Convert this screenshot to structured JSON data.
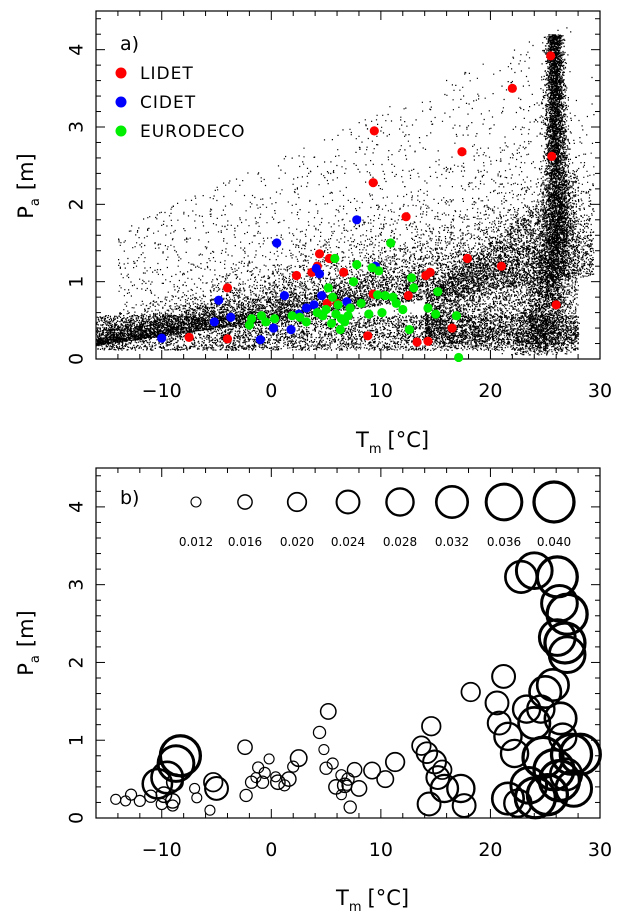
{
  "chart_data": [
    {
      "panel": "a)",
      "type": "scatter",
      "xlim": [
        -16,
        30
      ],
      "ylim": [
        0,
        4.5
      ],
      "xticks": [
        -10,
        0,
        10,
        20,
        30
      ],
      "yticks": [
        0,
        1,
        2,
        3,
        4
      ],
      "xlabel": {
        "main": "T",
        "sub": "m",
        "unit": "[°C]"
      },
      "ylabel": {
        "main": "P",
        "sub": "a",
        "unit": "[m]"
      },
      "legend_position": "top-left",
      "background": {
        "name": "",
        "color": "#000000",
        "description_points": "dense black dot cloud of grid cells"
      },
      "series": [
        {
          "name": "LIDET",
          "color": "#ff0000",
          "points": [
            [
              25.5,
              3.92
            ],
            [
              22.0,
              3.5
            ],
            [
              9.4,
              2.95
            ],
            [
              17.4,
              2.68
            ],
            [
              25.6,
              2.62
            ],
            [
              9.3,
              2.28
            ],
            [
              12.3,
              1.84
            ],
            [
              4.4,
              1.36
            ],
            [
              5.3,
              1.3
            ],
            [
              17.9,
              1.3
            ],
            [
              -4.0,
              0.92
            ],
            [
              2.3,
              1.08
            ],
            [
              3.7,
              1.12
            ],
            [
              4.2,
              1.2
            ],
            [
              6.6,
              1.12
            ],
            [
              14.1,
              1.08
            ],
            [
              14.5,
              1.12
            ],
            [
              21.0,
              1.2
            ],
            [
              9.3,
              0.84
            ],
            [
              12.5,
              0.82
            ],
            [
              5.1,
              0.72
            ],
            [
              26.0,
              0.7
            ],
            [
              16.5,
              0.4
            ],
            [
              8.8,
              0.3
            ],
            [
              13.3,
              0.22
            ],
            [
              14.3,
              0.23
            ],
            [
              -7.5,
              0.28
            ],
            [
              -4.0,
              0.26
            ],
            [
              6.0,
              0.72
            ]
          ]
        },
        {
          "name": "CIDET",
          "color": "#0000ff",
          "points": [
            [
              0.5,
              1.5
            ],
            [
              7.8,
              1.8
            ],
            [
              4.1,
              1.17
            ],
            [
              4.4,
              1.1
            ],
            [
              9.5,
              1.2
            ],
            [
              1.2,
              0.82
            ],
            [
              -4.8,
              0.76
            ],
            [
              -5.2,
              0.48
            ],
            [
              -3.7,
              0.54
            ],
            [
              2.5,
              0.58
            ],
            [
              3.9,
              0.7
            ],
            [
              0.2,
              0.4
            ],
            [
              1.8,
              0.38
            ],
            [
              -1.0,
              0.25
            ],
            [
              -10.0,
              0.27
            ],
            [
              3.2,
              0.66
            ],
            [
              6.9,
              0.74
            ],
            [
              4.6,
              0.82
            ]
          ]
        },
        {
          "name": "EURODECO",
          "color": "#00ee00",
          "points": [
            [
              10.9,
              1.5
            ],
            [
              5.8,
              1.3
            ],
            [
              7.8,
              1.22
            ],
            [
              9.2,
              1.18
            ],
            [
              9.8,
              1.14
            ],
            [
              12.8,
              1.05
            ],
            [
              7.5,
              1.0
            ],
            [
              13.0,
              0.92
            ],
            [
              15.2,
              0.87
            ],
            [
              10.4,
              0.82
            ],
            [
              11.1,
              0.8
            ],
            [
              9.7,
              0.83
            ],
            [
              11.4,
              0.72
            ],
            [
              6.1,
              0.7
            ],
            [
              7.2,
              0.66
            ],
            [
              8.2,
              0.72
            ],
            [
              5.0,
              0.64
            ],
            [
              5.9,
              0.58
            ],
            [
              4.7,
              0.56
            ],
            [
              4.2,
              0.6
            ],
            [
              3.2,
              0.48
            ],
            [
              2.6,
              0.54
            ],
            [
              1.9,
              0.56
            ],
            [
              0.3,
              0.52
            ],
            [
              -0.5,
              0.48
            ],
            [
              -0.9,
              0.56
            ],
            [
              -2.0,
              0.44
            ],
            [
              -1.8,
              0.52
            ],
            [
              6.4,
              0.52
            ],
            [
              6.7,
              0.48
            ],
            [
              5.5,
              0.46
            ],
            [
              7.0,
              0.56
            ],
            [
              8.9,
              0.58
            ],
            [
              10.1,
              0.6
            ],
            [
              12.0,
              0.64
            ],
            [
              14.3,
              0.66
            ],
            [
              15.0,
              0.58
            ],
            [
              16.9,
              0.56
            ],
            [
              12.6,
              0.38
            ],
            [
              6.3,
              0.38
            ],
            [
              5.2,
              0.92
            ],
            [
              5.6,
              0.8
            ],
            [
              17.1,
              0.02
            ]
          ]
        }
      ]
    },
    {
      "panel": "b)",
      "type": "scatter",
      "encoding": "bubble radius",
      "xlim": [
        -16,
        30
      ],
      "ylim": [
        0,
        4.5
      ],
      "xticks": [
        -10,
        0,
        10,
        20,
        30
      ],
      "yticks": [
        0,
        1,
        2,
        3,
        4
      ],
      "xlabel": {
        "main": "T",
        "sub": "m",
        "unit": "[°C]"
      },
      "ylabel": {
        "main": "P",
        "sub": "a",
        "unit": "[m]"
      },
      "size_legend": [
        "0.012",
        "0.016",
        "0.020",
        "0.024",
        "0.028",
        "0.032",
        "0.036",
        "0.040"
      ],
      "size_legend_values": [
        0.012,
        0.016,
        0.02,
        0.024,
        0.028,
        0.032,
        0.036,
        0.04
      ],
      "points": [
        [
          -14.2,
          0.24,
          0.012
        ],
        [
          -13.3,
          0.22,
          0.012
        ],
        [
          -12.8,
          0.3,
          0.013
        ],
        [
          -12.0,
          0.22,
          0.013
        ],
        [
          -11.0,
          0.28,
          0.014
        ],
        [
          -10.4,
          0.44,
          0.03
        ],
        [
          -9.8,
          0.3,
          0.017
        ],
        [
          -10.0,
          0.18,
          0.013
        ],
        [
          -9.5,
          0.52,
          0.032
        ],
        [
          -9.0,
          0.22,
          0.016
        ],
        [
          -8.7,
          0.7,
          0.036
        ],
        [
          -8.3,
          0.8,
          0.04
        ],
        [
          -8.8,
          0.46,
          0.018
        ],
        [
          -9.0,
          0.16,
          0.013
        ],
        [
          -7.0,
          0.38,
          0.012
        ],
        [
          -6.8,
          0.26,
          0.012
        ],
        [
          -5.3,
          0.46,
          0.02
        ],
        [
          -5.0,
          0.38,
          0.024
        ],
        [
          -5.6,
          0.1,
          0.012
        ],
        [
          -2.4,
          0.91,
          0.016
        ],
        [
          -1.2,
          0.65,
          0.013
        ],
        [
          -0.6,
          0.58,
          0.013
        ],
        [
          -0.2,
          0.76,
          0.012
        ],
        [
          -2.3,
          0.29,
          0.014
        ],
        [
          -1.8,
          0.46,
          0.014
        ],
        [
          -1.4,
          0.52,
          0.012
        ],
        [
          -0.8,
          0.46,
          0.014
        ],
        [
          0.6,
          0.46,
          0.016
        ],
        [
          0.4,
          0.53,
          0.012
        ],
        [
          1.2,
          0.42,
          0.013
        ],
        [
          1.6,
          0.5,
          0.016
        ],
        [
          2.0,
          0.66,
          0.013
        ],
        [
          2.5,
          0.77,
          0.018
        ],
        [
          4.4,
          1.1,
          0.014
        ],
        [
          4.8,
          0.88,
          0.012
        ],
        [
          5.2,
          1.37,
          0.017
        ],
        [
          5.0,
          0.64,
          0.014
        ],
        [
          5.6,
          0.7,
          0.013
        ],
        [
          6.4,
          0.55,
          0.013
        ],
        [
          5.9,
          0.4,
          0.016
        ],
        [
          6.4,
          0.3,
          0.012
        ],
        [
          6.7,
          0.42,
          0.016
        ],
        [
          7.0,
          0.5,
          0.014
        ],
        [
          7.6,
          0.62,
          0.016
        ],
        [
          8.0,
          0.38,
          0.017
        ],
        [
          9.2,
          0.61,
          0.018
        ],
        [
          7.2,
          0.14,
          0.014
        ],
        [
          6.9,
          0.42,
          0.012
        ],
        [
          10.4,
          0.5,
          0.018
        ],
        [
          11.3,
          0.72,
          0.02
        ],
        [
          13.7,
          0.93,
          0.02
        ],
        [
          14.6,
          1.18,
          0.02
        ],
        [
          14.2,
          0.84,
          0.022
        ],
        [
          14.9,
          0.72,
          0.024
        ],
        [
          15.2,
          0.52,
          0.024
        ],
        [
          15.8,
          0.38,
          0.028
        ],
        [
          15.6,
          0.62,
          0.02
        ],
        [
          14.4,
          0.18,
          0.024
        ],
        [
          17.3,
          0.38,
          0.028
        ],
        [
          17.6,
          0.16,
          0.024
        ],
        [
          18.2,
          1.62,
          0.02
        ],
        [
          20.6,
          1.48,
          0.024
        ],
        [
          21.2,
          1.82,
          0.024
        ],
        [
          20.8,
          1.22,
          0.024
        ],
        [
          21.6,
          1.05,
          0.028
        ],
        [
          22.2,
          0.83,
          0.028
        ],
        [
          21.6,
          0.25,
          0.032
        ],
        [
          22.5,
          0.19,
          0.028
        ],
        [
          22.8,
          3.1,
          0.032
        ],
        [
          24.0,
          3.18,
          0.036
        ],
        [
          23.3,
          1.4,
          0.028
        ],
        [
          24.0,
          1.22,
          0.032
        ],
        [
          24.6,
          1.4,
          0.028
        ],
        [
          25.0,
          1.62,
          0.032
        ],
        [
          25.7,
          1.71,
          0.032
        ],
        [
          26.1,
          3.1,
          0.04
        ],
        [
          26.3,
          2.76,
          0.036
        ],
        [
          27.0,
          2.62,
          0.04
        ],
        [
          26.1,
          2.32,
          0.036
        ],
        [
          26.8,
          2.25,
          0.04
        ],
        [
          27.0,
          2.1,
          0.036
        ],
        [
          26.4,
          1.28,
          0.032
        ],
        [
          26.6,
          1.04,
          0.028
        ],
        [
          24.8,
          0.78,
          0.04
        ],
        [
          25.8,
          0.62,
          0.04
        ],
        [
          26.3,
          0.48,
          0.04
        ],
        [
          25.2,
          0.3,
          0.04
        ],
        [
          23.5,
          0.42,
          0.036
        ],
        [
          24.1,
          0.26,
          0.04
        ],
        [
          27.4,
          0.82,
          0.04
        ],
        [
          28.2,
          0.82,
          0.04
        ],
        [
          26.9,
          0.56,
          0.032
        ],
        [
          27.6,
          0.38,
          0.036
        ]
      ]
    }
  ]
}
